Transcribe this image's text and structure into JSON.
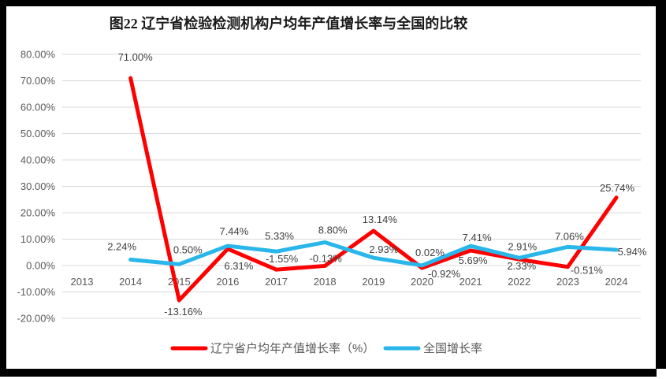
{
  "figure": {
    "title": "图22 辽宁省检验检测机构户均年产值增长率与全国的比较"
  },
  "legend": {
    "items": [
      {
        "label": "辽宁省户均年产值增长率（%）",
        "color": "#fe0000"
      },
      {
        "label": "全国增长率",
        "color": "#29b6ea"
      }
    ]
  },
  "colors": {
    "red_series": "#fe0000",
    "blue_series": "#29b6ea",
    "gridline": "#d9d9d9",
    "axis_text": "#595959",
    "data_label_text": "#404040",
    "frame": "#000000"
  },
  "chart_data": {
    "type": "line",
    "title": "图22 辽宁省检验检测机构户均年产值增长率与全国的比较",
    "categories": [
      "2013",
      "2014",
      "2015",
      "2016",
      "2017",
      "2018",
      "2019",
      "2020",
      "2021",
      "2022",
      "2023",
      "2024"
    ],
    "y_ticks": [
      "80.00%",
      "70.00%",
      "60.00%",
      "50.00%",
      "40.00%",
      "30.00%",
      "20.00%",
      "10.00%",
      "0.00%",
      "-10.00%",
      "-20.00%"
    ],
    "ylim": [
      -20,
      80
    ],
    "y_step": 10,
    "grid": true,
    "legend_position": "bottom",
    "series": [
      {
        "name": "辽宁省户均年产值增长率（%）",
        "color": "#fe0000",
        "values": [
          null,
          71.0,
          -13.16,
          6.31,
          -1.55,
          -0.13,
          13.14,
          -0.92,
          5.69,
          2.33,
          -0.51,
          25.74
        ],
        "labels": [
          null,
          "71.00%",
          "-13.16%",
          "6.31%",
          "-1.55%",
          "-0.13%",
          "13.14%",
          "-0.92%",
          "5.69%",
          "2.33%",
          "-0.51%",
          "25.74%"
        ]
      },
      {
        "name": "全国增长率",
        "color": "#29b6ea",
        "values": [
          null,
          2.24,
          0.5,
          7.44,
          5.33,
          8.8,
          2.93,
          0.02,
          7.41,
          2.91,
          7.06,
          5.94
        ],
        "labels": [
          null,
          "2.24%",
          "0.50%",
          "7.44%",
          "5.33%",
          "8.80%",
          "2.93%",
          "0.02%",
          "7.41%",
          "2.91%",
          "7.06%",
          "5.94%"
        ]
      }
    ]
  }
}
